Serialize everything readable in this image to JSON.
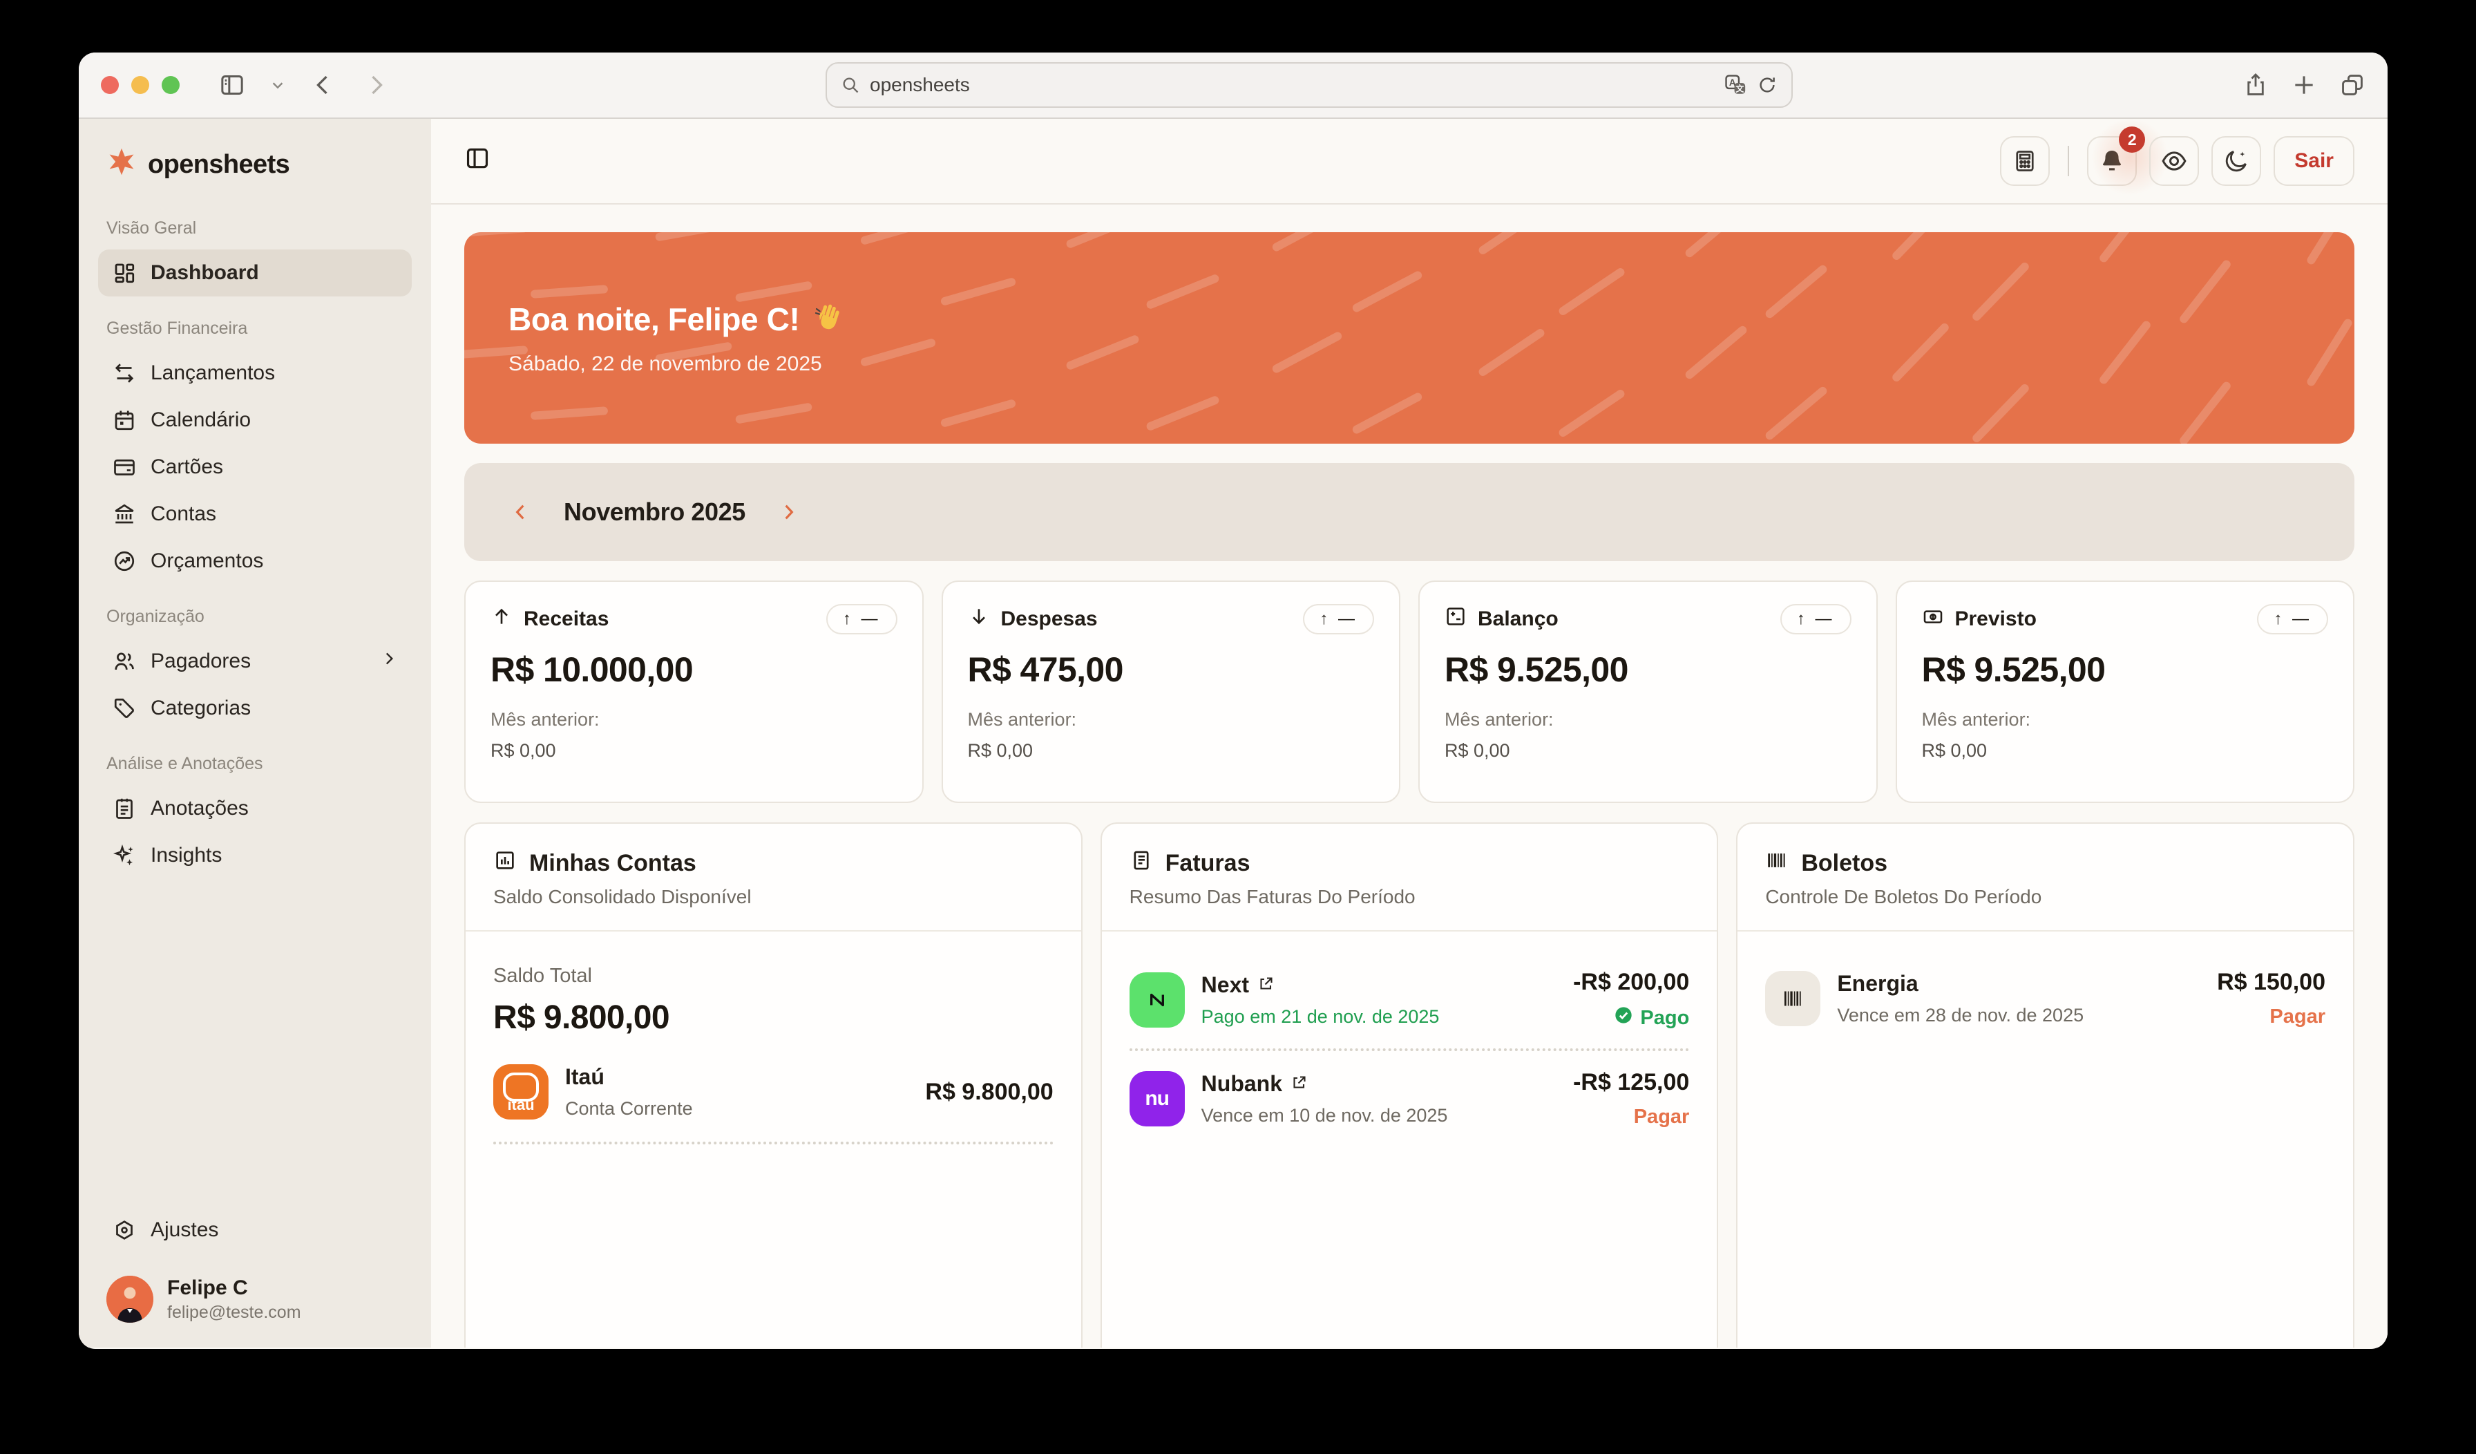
{
  "browser": {
    "url": "opensheets"
  },
  "colors": {
    "accent_orange": "#e5724a",
    "logout_red": "#c43a2e",
    "badge_red": "#c53b2e",
    "success_green": "#23a356",
    "next_green": "#5ce16c",
    "nubank_purple": "#9023ea",
    "itau_orange": "#ee7524",
    "sidebar_bg": "#eeeae3",
    "main_bg": "#fbf9f5"
  },
  "sidebar": {
    "logo": "opensheets",
    "sections": [
      {
        "label": "Visão Geral",
        "items": [
          {
            "label": "Dashboard"
          }
        ]
      },
      {
        "label": "Gestão Financeira",
        "items": [
          {
            "label": "Lançamentos"
          },
          {
            "label": "Calendário"
          },
          {
            "label": "Cartões"
          },
          {
            "label": "Contas"
          },
          {
            "label": "Orçamentos"
          }
        ]
      },
      {
        "label": "Organização",
        "items": [
          {
            "label": "Pagadores"
          },
          {
            "label": "Categorias"
          }
        ]
      },
      {
        "label": "Análise e Anotações",
        "items": [
          {
            "label": "Anotações"
          },
          {
            "label": "Insights"
          }
        ]
      }
    ],
    "settings_label": "Ajustes",
    "user": {
      "name": "Felipe C",
      "email": "felipe@teste.com"
    }
  },
  "header": {
    "notification_count": "2",
    "logout_label": "Sair"
  },
  "banner": {
    "greeting": "Boa noite, Felipe C!",
    "emoji": "👋",
    "date": "Sábado, 22 de novembro de 2025"
  },
  "month_nav": {
    "label": "Novembro 2025"
  },
  "stats": [
    {
      "label": "Receitas",
      "value": "R$ 10.000,00",
      "prev_label": "Mês anterior:",
      "prev_value": "R$ 0,00",
      "badge": "↑ —"
    },
    {
      "label": "Despesas",
      "value": "R$ 475,00",
      "prev_label": "Mês anterior:",
      "prev_value": "R$ 0,00",
      "badge": "↑ —"
    },
    {
      "label": "Balanço",
      "value": "R$ 9.525,00",
      "prev_label": "Mês anterior:",
      "prev_value": "R$ 0,00",
      "badge": "↑ —"
    },
    {
      "label": "Previsto",
      "value": "R$ 9.525,00",
      "prev_label": "Mês anterior:",
      "prev_value": "R$ 0,00",
      "badge": "↑ —"
    }
  ],
  "accounts_card": {
    "title": "Minhas Contas",
    "subtitle": "Saldo Consolidado Disponível",
    "total_label": "Saldo Total",
    "total_value": "R$ 9.800,00",
    "items": [
      {
        "name": "Itaú",
        "type": "Conta Corrente",
        "value": "R$ 9.800,00",
        "logo_text": "itaú"
      }
    ]
  },
  "invoices_card": {
    "title": "Faturas",
    "subtitle": "Resumo Das Faturas Do Período",
    "items": [
      {
        "name": "Next",
        "status_line": "Pago em 21 de nov. de 2025",
        "amount": "-R$ 200,00",
        "status": "Pago"
      },
      {
        "name": "Nubank",
        "logo_text": "nu",
        "status_line": "Vence em 10 de nov. de 2025",
        "amount": "-R$ 125,00",
        "status": "Pagar"
      }
    ]
  },
  "boletos_card": {
    "title": "Boletos",
    "subtitle": "Controle De Boletos Do Período",
    "items": [
      {
        "name": "Energia",
        "status_line": "Vence em 28 de nov. de 2025",
        "amount": "R$ 150,00",
        "status": "Pagar"
      }
    ]
  }
}
